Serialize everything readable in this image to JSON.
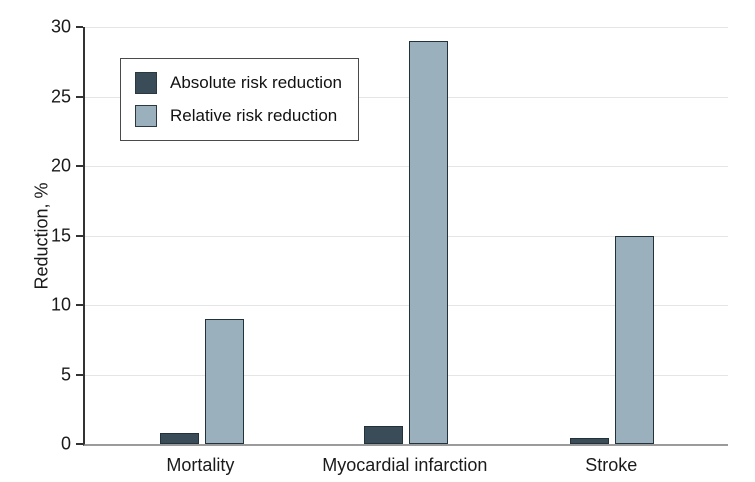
{
  "chart_data": {
    "type": "bar",
    "title": "",
    "xlabel": "",
    "ylabel": "Reduction, %",
    "categories": [
      "Mortality",
      "Myocardial infarction",
      "Stroke"
    ],
    "series": [
      {
        "name": "Absolute risk reduction",
        "color": "#3a4c57",
        "values": [
          0.8,
          1.3,
          0.4
        ]
      },
      {
        "name": "Relative risk reduction",
        "color": "#9ab0bc",
        "values": [
          9,
          29,
          15
        ]
      }
    ],
    "ylim": [
      0,
      30
    ],
    "y_ticks": [
      0,
      5,
      10,
      15,
      20,
      25,
      30
    ],
    "grid": "horizontal",
    "legend_position": "upper-left-inside"
  },
  "colors": {
    "grid_line": "#e5e5e5",
    "y_axis_line": "#333333",
    "baseline": "#9b9b9b",
    "bar_border": "#22313a",
    "legend_border": "#4a4a4a",
    "text": "#1a1a1a"
  }
}
